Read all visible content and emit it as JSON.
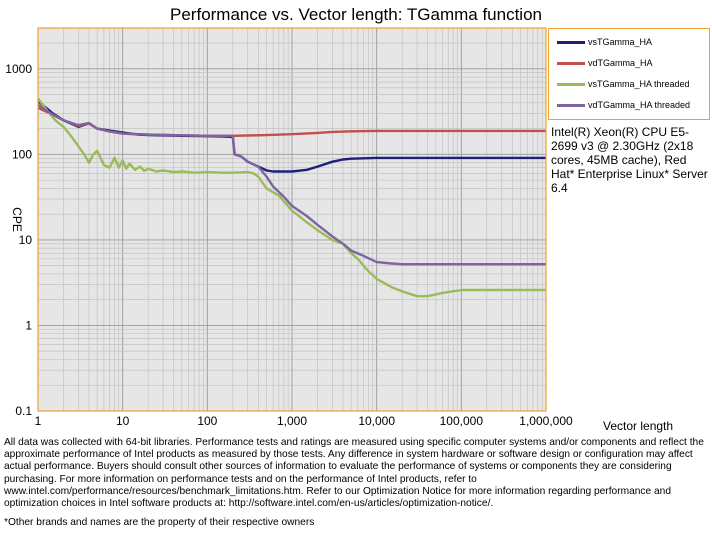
{
  "chart_data": {
    "type": "line",
    "title": "Performance vs. Vector length: TGamma function",
    "xlabel": "Vector length",
    "ylabel": "CPE",
    "xscale": "log",
    "yscale": "log",
    "xlim": [
      1,
      1000000
    ],
    "ylim": [
      0.1,
      3000
    ],
    "xticks": [
      "1",
      "10",
      "100",
      "1,000",
      "10,000",
      "100,000",
      "1,000,000"
    ],
    "yticks": [
      "0.1",
      "1",
      "10",
      "100",
      "1000"
    ],
    "grid": true,
    "legend_position": "right",
    "series": [
      {
        "name": "vsTGamma_HA",
        "color": "#1f1f7a",
        "points": [
          [
            1,
            420
          ],
          [
            1.5,
            300
          ],
          [
            2,
            250
          ],
          [
            3,
            210
          ],
          [
            4,
            230
          ],
          [
            5,
            200
          ],
          [
            7,
            190
          ],
          [
            10,
            180
          ],
          [
            15,
            170
          ],
          [
            20,
            168
          ],
          [
            50,
            165
          ],
          [
            100,
            163
          ],
          [
            150,
            162
          ],
          [
            200,
            160
          ],
          [
            210,
            100
          ],
          [
            250,
            95
          ],
          [
            300,
            82
          ],
          [
            400,
            72
          ],
          [
            500,
            65
          ],
          [
            600,
            63
          ],
          [
            800,
            63
          ],
          [
            1000,
            63
          ],
          [
            1500,
            66
          ],
          [
            2000,
            72
          ],
          [
            3000,
            82
          ],
          [
            4000,
            87
          ],
          [
            5000,
            89
          ],
          [
            7000,
            90
          ],
          [
            10000,
            91
          ],
          [
            20000,
            91
          ],
          [
            50000,
            91
          ],
          [
            100000,
            91
          ],
          [
            1000000,
            91
          ]
        ]
      },
      {
        "name": "vdTGamma_HA",
        "color": "#c0504d",
        "points": [
          [
            1,
            350
          ],
          [
            1.5,
            290
          ],
          [
            2,
            250
          ],
          [
            3,
            215
          ],
          [
            4,
            230
          ],
          [
            5,
            200
          ],
          [
            7,
            185
          ],
          [
            10,
            175
          ],
          [
            20,
            170
          ],
          [
            50,
            167
          ],
          [
            100,
            165
          ],
          [
            200,
            165
          ],
          [
            300,
            166
          ],
          [
            500,
            168
          ],
          [
            1000,
            172
          ],
          [
            2000,
            178
          ],
          [
            3000,
            183
          ],
          [
            5000,
            186
          ],
          [
            10000,
            188
          ],
          [
            100000,
            188
          ],
          [
            1000000,
            188
          ]
        ]
      },
      {
        "name": "vsTGamma_HA threaded",
        "color": "#9bbb59",
        "points": [
          [
            1,
            450
          ],
          [
            1.3,
            320
          ],
          [
            1.6,
            250
          ],
          [
            2,
            210
          ],
          [
            2.5,
            160
          ],
          [
            3,
            125
          ],
          [
            3.5,
            100
          ],
          [
            4,
            80
          ],
          [
            4.5,
            100
          ],
          [
            5,
            110
          ],
          [
            5.5,
            90
          ],
          [
            6,
            75
          ],
          [
            7,
            70
          ],
          [
            8,
            92
          ],
          [
            9,
            70
          ],
          [
            10,
            85
          ],
          [
            11,
            68
          ],
          [
            12,
            78
          ],
          [
            14,
            66
          ],
          [
            16,
            72
          ],
          [
            18,
            64
          ],
          [
            20,
            68
          ],
          [
            25,
            63
          ],
          [
            30,
            65
          ],
          [
            40,
            62
          ],
          [
            50,
            63
          ],
          [
            70,
            61
          ],
          [
            100,
            62
          ],
          [
            150,
            61
          ],
          [
            200,
            61
          ],
          [
            300,
            62
          ],
          [
            350,
            60
          ],
          [
            400,
            55
          ],
          [
            500,
            40
          ],
          [
            700,
            33
          ],
          [
            1000,
            22
          ],
          [
            1500,
            16
          ],
          [
            2000,
            13
          ],
          [
            3000,
            10
          ],
          [
            4000,
            9
          ],
          [
            5000,
            7
          ],
          [
            6000,
            6
          ],
          [
            7000,
            5
          ],
          [
            8000,
            4.3
          ],
          [
            10000,
            3.5
          ],
          [
            15000,
            2.8
          ],
          [
            20000,
            2.5
          ],
          [
            30000,
            2.2
          ],
          [
            40000,
            2.2
          ],
          [
            60000,
            2.4
          ],
          [
            100000,
            2.6
          ],
          [
            200000,
            2.6
          ],
          [
            1000000,
            2.6
          ]
        ]
      },
      {
        "name": "vdTGamma_HA threaded",
        "color": "#8064a2",
        "points": [
          [
            1,
            380
          ],
          [
            1.5,
            290
          ],
          [
            2,
            250
          ],
          [
            3,
            220
          ],
          [
            4,
            232
          ],
          [
            5,
            200
          ],
          [
            7,
            185
          ],
          [
            10,
            175
          ],
          [
            20,
            170
          ],
          [
            50,
            167
          ],
          [
            100,
            165
          ],
          [
            200,
            165
          ],
          [
            210,
            100
          ],
          [
            250,
            95
          ],
          [
            300,
            82
          ],
          [
            400,
            72
          ],
          [
            500,
            55
          ],
          [
            600,
            42
          ],
          [
            800,
            32
          ],
          [
            1000,
            25
          ],
          [
            1500,
            19
          ],
          [
            2000,
            15
          ],
          [
            3000,
            11
          ],
          [
            4000,
            9
          ],
          [
            5000,
            7.5
          ],
          [
            7000,
            6.5
          ],
          [
            10000,
            5.5
          ],
          [
            15000,
            5.3
          ],
          [
            20000,
            5.2
          ],
          [
            30000,
            5.2
          ],
          [
            100000,
            5.2
          ],
          [
            1000000,
            5.2
          ]
        ]
      }
    ]
  },
  "legend": [
    {
      "label": "vsTGamma_HA",
      "color": "#1f1f7a"
    },
    {
      "label": "vdTGamma_HA",
      "color": "#c0504d"
    },
    {
      "label": "vsTGamma_HA threaded",
      "color": "#9bbb59"
    },
    {
      "label": "vdTGamma_HA threaded",
      "color": "#8064a2"
    }
  ],
  "system_info": "Intel(R) Xeon(R) CPU E5-2699 v3 @ 2.30GHz (2x18 cores, 45MB cache), Red Hat* Enterprise Linux* Server 6.4",
  "disclaimer": "All data was collected with 64-bit libraries. Performance tests and ratings are measured using specific computer systems and/or components and reflect the approximate performance of Intel products as measured by those tests. Any difference in system hardware or software design or configuration may affect actual performance. Buyers should consult other sources of information to evaluate the performance of systems or components they are considering purchasing. For more information on performance tests and on the performance of Intel products, refer to www.intel.com/performance/resources/benchmark_limitations.htm. Refer to our Optimization Notice for more information regarding performance and optimization choices in Intel software products at: http://software.intel.com/en-us/articles/optimization-notice/.",
  "footnote": "*Other brands and names are the property of their respective owners"
}
